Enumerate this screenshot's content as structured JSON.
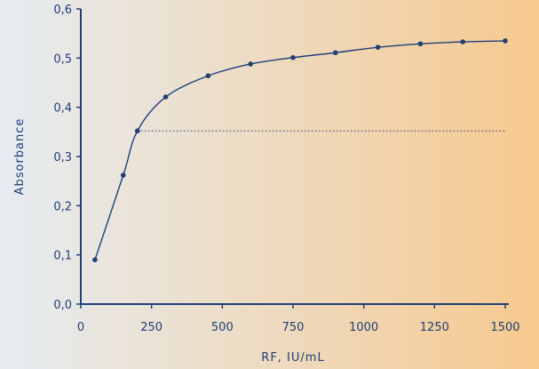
{
  "chart_data": {
    "type": "line",
    "xlabel": "RF, IU/mL",
    "ylabel": "Absorbance",
    "xlim": [
      0,
      1500
    ],
    "ylim": [
      0.0,
      0.6
    ],
    "x_ticks": [
      0,
      250,
      500,
      750,
      1000,
      1250,
      1500
    ],
    "x_tick_labels": [
      "0",
      "250",
      "500",
      "750",
      "1000",
      "1250",
      "1500"
    ],
    "y_ticks": [
      0.0,
      0.1,
      0.2,
      0.3,
      0.4,
      0.5,
      0.6
    ],
    "y_tick_labels": [
      "0,0",
      "0,1",
      "0,2",
      "0,3",
      "0,4",
      "0,5",
      "0,6"
    ],
    "grid": false,
    "series": [
      {
        "x": [
          50,
          150,
          200,
          300,
          450,
          600,
          750,
          900,
          1050,
          1200,
          1350,
          1500
        ],
        "y": [
          0.09,
          0.262,
          0.352,
          0.421,
          0.464,
          0.488,
          0.501,
          0.511,
          0.522,
          0.529,
          0.533,
          0.535
        ]
      }
    ],
    "reference_line": {
      "y": 0.352,
      "x_start": 200,
      "x_end": 1500,
      "style": "dotted"
    },
    "colors": {
      "ink": "#1f3f77",
      "bg_left": "#e6ecf2",
      "bg_right": "#f6c98e"
    }
  }
}
